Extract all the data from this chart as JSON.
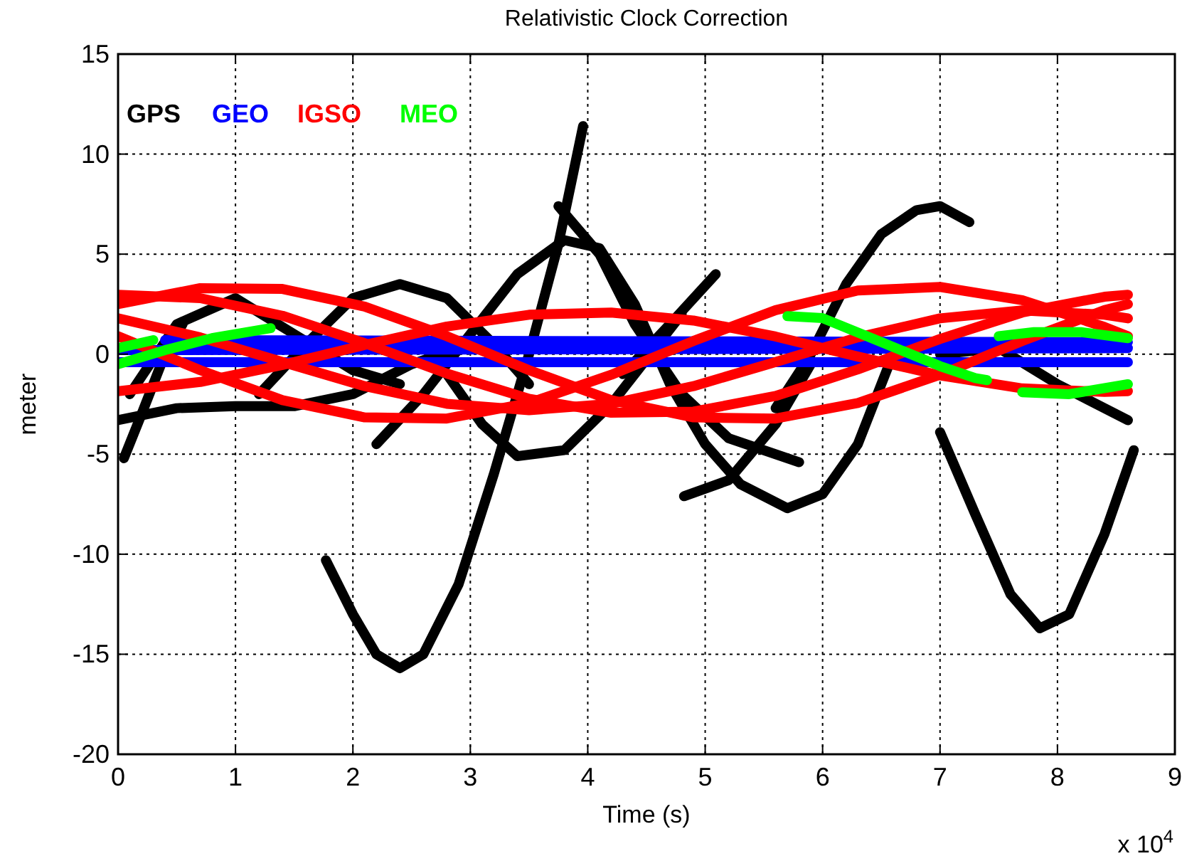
{
  "chart_data": {
    "type": "line",
    "title": "Relativistic Clock Correction",
    "xlabel": "Time (s)",
    "ylabel": "meter",
    "xlim": [
      0,
      9
    ],
    "xticks": [
      0,
      1,
      2,
      3,
      4,
      5,
      6,
      7,
      8,
      9
    ],
    "ylim": [
      -20,
      15
    ],
    "yticks": [
      -20,
      -15,
      -10,
      -5,
      0,
      5,
      10,
      15
    ],
    "grid": true,
    "line_style": "solid",
    "legend": "top left",
    "annotations": [
      "x 10$^{4}$"
    ],
    "series": [
      {
        "name": "GPS",
        "color": "#000000",
        "x": [
          1.77,
          2.0,
          2.2,
          2.4,
          2.6,
          2.9,
          3.2,
          3.5,
          3.75,
          3.96
        ],
        "values": [
          -10.3,
          -13,
          -15,
          -15.7,
          -15,
          -11.5,
          -6,
          0,
          5.5,
          11.4
        ]
      },
      {
        "color": "#000000",
        "x": [
          2.2,
          2.6,
          3.0,
          3.4,
          3.8,
          4.1,
          4.4,
          4.7,
          5.0,
          5.3,
          5.7,
          6.0,
          6.3,
          6.6
        ],
        "values": [
          -4.5,
          -2,
          1,
          4,
          5.7,
          5.3,
          2.5,
          -1.5,
          -4.5,
          -6.5,
          -7.7,
          -7,
          -4.5,
          0
        ]
      },
      {
        "color": "#000000",
        "x": [
          5.6,
          5.9,
          6.2,
          6.5,
          6.8,
          7.0,
          7.25
        ],
        "values": [
          -2.7,
          0,
          3.5,
          6,
          7.2,
          7.4,
          6.6
        ]
      },
      {
        "color": "#000000",
        "x": [
          3.75,
          4.1,
          4.4,
          4.8,
          5.2,
          5.8
        ],
        "values": [
          7.4,
          5,
          1.5,
          -2,
          -4.2,
          -5.4
        ]
      },
      {
        "color": "#000000",
        "x": [
          4.82,
          5.2,
          5.6,
          5.9
        ],
        "values": [
          -7.1,
          -6.3,
          -3.5,
          -0.5
        ]
      },
      {
        "color": "#000000",
        "x": [
          4.3,
          4.7,
          5.09
        ],
        "values": [
          -1,
          1.5,
          4.0
        ]
      },
      {
        "color": "#000000",
        "x": [
          2.8,
          3.1,
          3.4,
          3.8,
          4.2,
          4.6,
          4.8
        ],
        "values": [
          -1,
          -3.5,
          -5.1,
          -4.8,
          -2.5,
          0.5,
          2
        ]
      },
      {
        "color": "#000000",
        "x": [
          0.05,
          0.2,
          0.4,
          0.55
        ],
        "values": [
          -5.2,
          -3,
          0,
          1.5
        ]
      },
      {
        "color": "#000000",
        "x": [
          0,
          0.5,
          1.0,
          1.5,
          2.0,
          2.5,
          3.0
        ],
        "values": [
          -3.3,
          -2.7,
          -2.6,
          -2.6,
          -2,
          -0.5,
          0.5
        ]
      },
      {
        "color": "#000000",
        "x": [
          1.2,
          1.6,
          2.0,
          2.4,
          2.8,
          3.2,
          3.5
        ],
        "values": [
          -2,
          0.5,
          2.8,
          3.5,
          2.8,
          0.5,
          -1.5
        ]
      },
      {
        "color": "#000000",
        "x": [
          0.1,
          0.5,
          1.0,
          1.5,
          2.0,
          2.4
        ],
        "values": [
          -2,
          1.5,
          2.8,
          1.0,
          -0.8,
          -1.5
        ]
      },
      {
        "color": "#000000",
        "x": [
          7.0,
          7.3,
          7.6,
          7.85,
          8.1,
          8.4,
          8.65
        ],
        "values": [
          -3.9,
          -8,
          -12,
          -13.7,
          -13,
          -9,
          -4.8
        ]
      },
      {
        "color": "#000000",
        "x": [
          7.0,
          7.5,
          8.0,
          8.6
        ],
        "values": [
          0,
          0.3,
          -1.5,
          -3.3
        ]
      },
      {
        "name": "GEO",
        "color": "#0000ff",
        "x": [
          0.4,
          8.6
        ],
        "values": [
          0.7,
          0.6
        ]
      },
      {
        "color": "#0000ff",
        "x": [
          0,
          8.6
        ],
        "values": [
          0.2,
          0.3
        ]
      },
      {
        "color": "#0000ff",
        "x": [
          0,
          8.6
        ],
        "values": [
          -0.4,
          -0.4
        ]
      },
      {
        "name": "IGSO",
        "color": "#ff0000",
        "x": [
          0,
          0.7,
          1.4,
          2.1,
          2.8,
          3.5,
          4.2,
          4.9,
          5.6,
          6.3,
          7.0,
          7.7,
          8.4,
          8.6
        ],
        "values": [
          2.5,
          3.3,
          3.26,
          2.38,
          0.9,
          -0.8,
          -2.3,
          -3.16,
          -3.22,
          -2.44,
          -1.03,
          0.66,
          2.2,
          2.5
        ]
      },
      {
        "color": "#ff0000",
        "x": [
          0,
          0.7,
          1.4,
          2.1,
          2.8,
          3.5,
          4.2,
          4.9,
          5.6,
          6.3,
          7.0,
          7.7,
          8.4,
          8.6
        ],
        "values": [
          0.9,
          -0.8,
          -2.3,
          -3.16,
          -3.22,
          -2.44,
          -1.03,
          0.66,
          2.2,
          3.18,
          3.36,
          2.7,
          1.36,
          0.9
        ]
      },
      {
        "color": "#ff0000",
        "x": [
          0,
          0.7,
          1.4,
          2.1,
          2.8,
          3.5,
          4.2,
          4.9,
          5.6,
          6.3,
          7.0,
          7.7,
          8.4,
          8.6
        ],
        "values": [
          -1.85,
          -1.39,
          -0.54,
          0.46,
          1.38,
          1.97,
          2.08,
          1.68,
          0.88,
          -0.12,
          -1.06,
          -1.71,
          -1.89,
          -1.85
        ]
      },
      {
        "color": "#ff0000",
        "x": [
          0,
          0.7,
          1.4,
          2.1,
          2.8,
          3.5,
          4.2,
          4.9,
          5.6,
          6.3,
          7.0,
          7.7,
          8.4,
          8.6
        ],
        "values": [
          2.97,
          2.8,
          1.92,
          0.55,
          -0.97,
          -2.23,
          -2.93,
          -2.87,
          -2.09,
          -0.76,
          0.76,
          2.08,
          2.87,
          2.97
        ]
      },
      {
        "color": "#ff0000",
        "x": [
          0,
          0.7,
          1.4,
          2.1,
          2.8,
          3.5,
          4.2,
          4.9,
          5.6,
          6.3,
          7.0,
          7.7,
          8.4,
          8.6
        ],
        "values": [
          1.79,
          0.84,
          -0.39,
          -1.6,
          -2.48,
          -2.8,
          -2.48,
          -1.6,
          -0.39,
          0.84,
          1.79,
          2.19,
          1.97,
          1.79
        ]
      },
      {
        "name": "MEO",
        "color": "#00ff00",
        "x": [
          0,
          0.4,
          0.8,
          1.3
        ],
        "values": [
          -0.5,
          0.2,
          0.8,
          1.3
        ]
      },
      {
        "color": "#00ff00",
        "x": [
          0,
          0.3
        ],
        "values": [
          0.3,
          0.7
        ]
      },
      {
        "color": "#00ff00",
        "x": [
          5.7,
          6.0,
          6.5,
          7.0,
          7.3,
          7.4
        ],
        "values": [
          1.9,
          1.8,
          0.6,
          -0.6,
          -1.2,
          -1.3
        ]
      },
      {
        "color": "#00ff00",
        "x": [
          7.5,
          7.8,
          8.2,
          8.6
        ],
        "values": [
          0.9,
          1.1,
          1.1,
          0.8
        ]
      },
      {
        "color": "#00ff00",
        "x": [
          7.7,
          8.1,
          8.6
        ],
        "values": [
          -1.9,
          -2.0,
          -1.5
        ]
      }
    ]
  }
}
